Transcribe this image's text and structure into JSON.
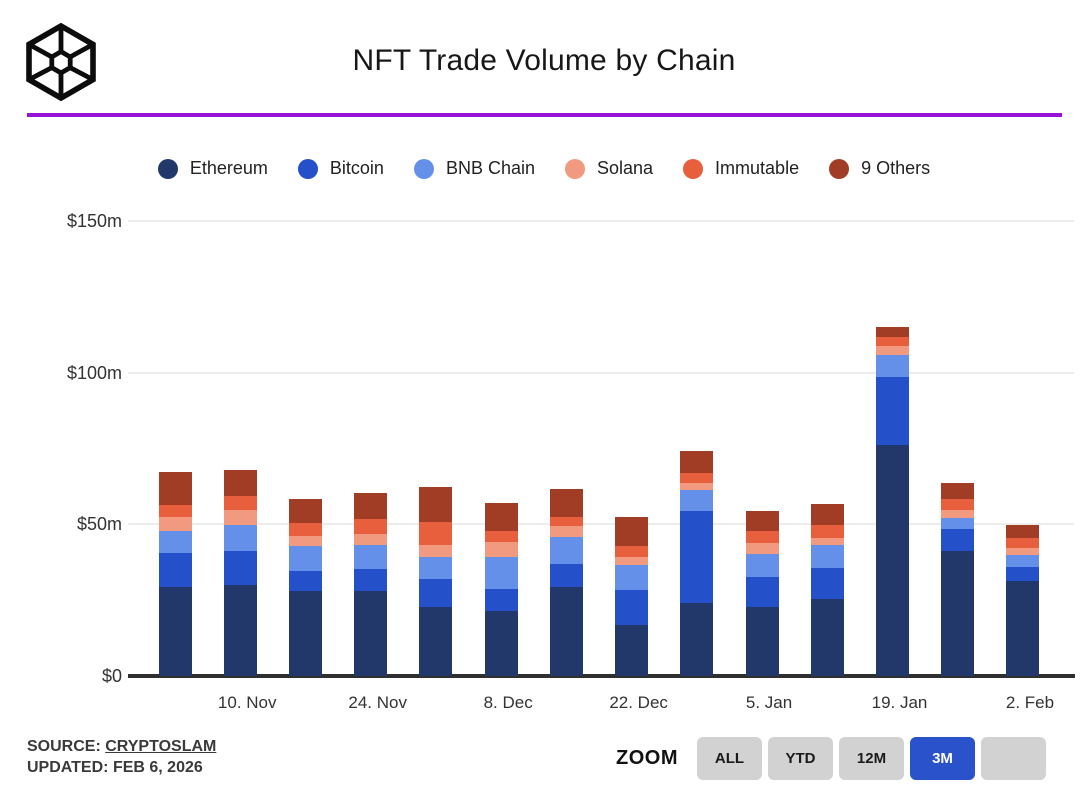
{
  "header": {
    "title": "NFT Trade Volume by Chain",
    "logo_icon": "wireframe-cube-icon",
    "accent_color": "#9712d4"
  },
  "footer": {
    "source_label": "SOURCE:",
    "source_value": "CRYPTOSLAM",
    "updated_label": "UPDATED:",
    "updated_value": "FEB 6, 2026",
    "zoom_label": "ZOOM",
    "active_color": "#2a52cb",
    "inactive_color": "#d2d2d2",
    "zoom_buttons": [
      {
        "label": "ALL",
        "active": false
      },
      {
        "label": "YTD",
        "active": false
      },
      {
        "label": "12M",
        "active": false
      },
      {
        "label": "3M",
        "active": true
      },
      {
        "label": "",
        "active": false
      }
    ]
  },
  "chart_data": {
    "type": "bar",
    "stacked": true,
    "title": "NFT Trade Volume by Chain",
    "unit": "USD millions per week",
    "grid": true,
    "legend_position": "top",
    "ylim": [
      0,
      150
    ],
    "y_ticks": [
      {
        "value": 0,
        "label": "$0"
      },
      {
        "value": 50,
        "label": "$50m"
      },
      {
        "value": 100,
        "label": "$100m"
      },
      {
        "value": 150,
        "label": "$150m"
      }
    ],
    "categories": [
      "3. Nov",
      "10. Nov",
      "17. Nov",
      "24. Nov",
      "1. Dec",
      "8. Dec",
      "15. Dec",
      "22. Dec",
      "29. Dec",
      "5. Jan",
      "12. Jan",
      "19. Jan",
      "26. Jan",
      "2. Feb"
    ],
    "x_tick_labels": [
      "10. Nov",
      "24. Nov",
      "8. Dec",
      "22. Dec",
      "5. Jan",
      "19. Jan",
      "2. Feb"
    ],
    "series": [
      {
        "name": "Ethereum",
        "color": "#22386b",
        "values": [
          29.4,
          29.9,
          28.0,
          28.0,
          22.8,
          21.4,
          29.3,
          16.7,
          24.0,
          22.8,
          25.3,
          76.2,
          41.2,
          31.3
        ]
      },
      {
        "name": "Bitcoin",
        "color": "#2450c9",
        "values": [
          11.0,
          11.2,
          6.5,
          7.3,
          9.1,
          7.3,
          7.6,
          11.8,
          30.4,
          9.8,
          10.4,
          22.4,
          7.2,
          4.6
        ]
      },
      {
        "name": "BNB Chain",
        "color": "#6590e9",
        "values": [
          7.5,
          8.6,
          8.5,
          8.0,
          7.3,
          10.4,
          8.8,
          8.2,
          6.8,
          7.6,
          7.4,
          7.2,
          3.8,
          3.9
        ]
      },
      {
        "name": "Solana",
        "color": "#f29a80",
        "values": [
          4.4,
          5.1,
          3.3,
          3.5,
          4.0,
          5.0,
          3.9,
          2.4,
          2.5,
          3.7,
          2.5,
          3.1,
          2.4,
          2.5
        ]
      },
      {
        "name": "Immutable",
        "color": "#e85f3d",
        "values": [
          4.2,
          4.4,
          4.1,
          5.1,
          7.7,
          3.8,
          2.7,
          3.7,
          3.1,
          3.8,
          4.1,
          3.0,
          3.9,
          3.1
        ]
      },
      {
        "name": "9 Others",
        "color": "#a03d24",
        "values": [
          10.9,
          8.8,
          7.9,
          8.4,
          11.5,
          9.1,
          9.3,
          9.5,
          7.4,
          6.6,
          6.9,
          3.3,
          5.2,
          4.4
        ]
      }
    ]
  }
}
